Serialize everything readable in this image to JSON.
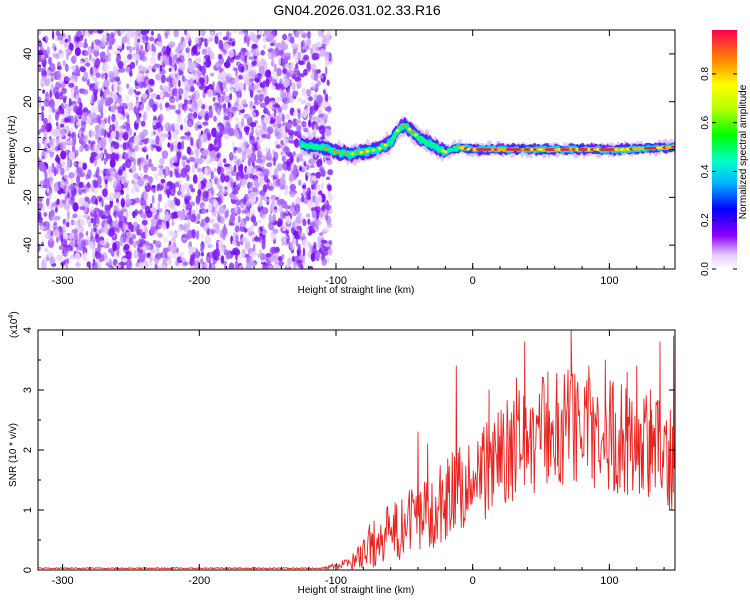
{
  "title": "GN04.2026.031.02.33.R16",
  "chart_data": [
    {
      "type": "heatmap",
      "xlabel": "Height of straight line (km)",
      "ylabel": "Frequency (Hz)",
      "xlim": [
        -318,
        148
      ],
      "ylim": [
        -50,
        50
      ],
      "xticks": [
        -300,
        -200,
        -100,
        0,
        100
      ],
      "yticks": [
        -40,
        -20,
        0,
        20,
        40
      ],
      "noise_region_x": [
        -318,
        -110
      ],
      "ridge": {
        "x": [
          -125,
          -110,
          -100,
          -90,
          -80,
          -70,
          -60,
          -55,
          -50,
          -45,
          -40,
          -30,
          -20,
          -10,
          0,
          20,
          50,
          80,
          110,
          148
        ],
        "y": [
          2,
          1,
          -1,
          -2,
          -1,
          0,
          3,
          8,
          10,
          8,
          5,
          2,
          -1,
          1,
          0,
          0,
          0,
          0,
          0,
          1
        ]
      },
      "colorbar": {
        "label": "Normalized spectral amplitude",
        "ticks": [
          0.0,
          0.2,
          0.4,
          0.6,
          0.8
        ],
        "range": [
          0,
          0.98
        ]
      }
    },
    {
      "type": "line",
      "xlabel": "Height of straight line (km)",
      "ylabel": "SNR (10 * v/v)",
      "yscale_label": "(x10",
      "yscale_exp": "4",
      "yscale_close": ")",
      "xlim": [
        -318,
        148
      ],
      "ylim": [
        0,
        4
      ],
      "xticks": [
        -300,
        -200,
        -100,
        0,
        100
      ],
      "yticks": [
        0,
        1,
        2,
        3,
        4
      ],
      "color": "#e8221e",
      "envelope": {
        "x": [
          -318,
          -110,
          -90,
          -80,
          -70,
          -60,
          -50,
          -40,
          -30,
          -20,
          -10,
          0,
          10,
          20,
          30,
          40,
          50,
          60,
          70,
          80,
          90,
          100,
          110,
          120,
          130,
          140,
          148
        ],
        "y": [
          0.02,
          0.03,
          0.1,
          0.3,
          0.5,
          0.6,
          0.7,
          0.9,
          1.0,
          1.2,
          1.4,
          1.5,
          1.7,
          1.9,
          2.0,
          2.2,
          2.3,
          2.3,
          2.4,
          2.35,
          2.3,
          2.25,
          2.2,
          2.1,
          2.0,
          1.9,
          1.8
        ]
      },
      "amplitude": {
        "x": [
          -318,
          -110,
          -90,
          -80,
          -70,
          -60,
          -50,
          -40,
          -30,
          -20,
          -10,
          0,
          10,
          20,
          30,
          40,
          50,
          60,
          70,
          80,
          90,
          100,
          110,
          120,
          130,
          140,
          148
        ],
        "y": [
          0.01,
          0.01,
          0.1,
          0.3,
          0.45,
          0.5,
          0.55,
          0.6,
          0.65,
          0.7,
          0.75,
          0.8,
          0.85,
          0.9,
          0.9,
          0.95,
          1.0,
          1.0,
          1.05,
          1.0,
          1.0,
          0.95,
          0.95,
          0.95,
          0.9,
          0.9,
          0.9
        ]
      },
      "peaks": [
        {
          "x": -40,
          "y": 2.3
        },
        {
          "x": -33,
          "y": 2.1
        },
        {
          "x": -12,
          "y": 3.4
        },
        {
          "x": 12,
          "y": 3.0
        },
        {
          "x": 32,
          "y": 3.2
        },
        {
          "x": 38,
          "y": 3.8
        },
        {
          "x": 55,
          "y": 3.3
        },
        {
          "x": 72,
          "y": 4.0
        },
        {
          "x": 85,
          "y": 3.4
        },
        {
          "x": 97,
          "y": 3.5
        },
        {
          "x": 113,
          "y": 3.3
        },
        {
          "x": 120,
          "y": 3.4
        },
        {
          "x": 130,
          "y": 3.0
        },
        {
          "x": 137,
          "y": 3.8
        },
        {
          "x": 147,
          "y": 3.9
        }
      ]
    }
  ]
}
